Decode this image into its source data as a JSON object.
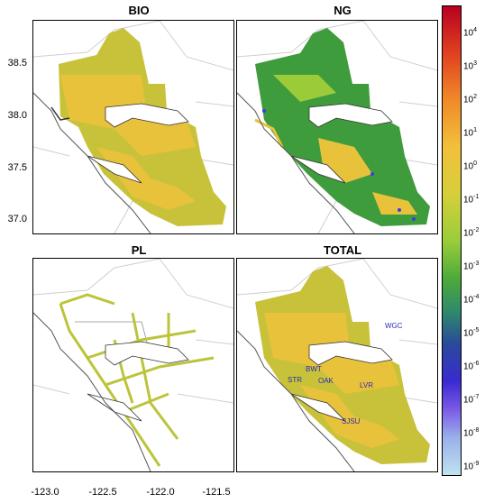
{
  "panels": [
    {
      "id": "bio",
      "title": "BIO"
    },
    {
      "id": "ng",
      "title": "NG"
    },
    {
      "id": "pl",
      "title": "PL"
    },
    {
      "id": "total",
      "title": "TOTAL"
    }
  ],
  "y_ticks": [
    "38.5",
    "38.0",
    "37.5",
    "37.0"
  ],
  "x_ticks": [
    "-123.0",
    "-122.5",
    "-122.0",
    "-121.5"
  ],
  "sites": [
    {
      "label": "WGC"
    },
    {
      "label": "BWT"
    },
    {
      "label": "STR"
    },
    {
      "label": "OAK"
    },
    {
      "label": "LVR"
    },
    {
      "label": "SJSU"
    }
  ],
  "colorbar": {
    "base": "10",
    "exponents": [
      "4",
      "3",
      "2",
      "1",
      "0",
      "-1",
      "-2",
      "-3",
      "-4",
      "-5",
      "-6",
      "-7",
      "-8",
      "-9"
    ]
  }
}
